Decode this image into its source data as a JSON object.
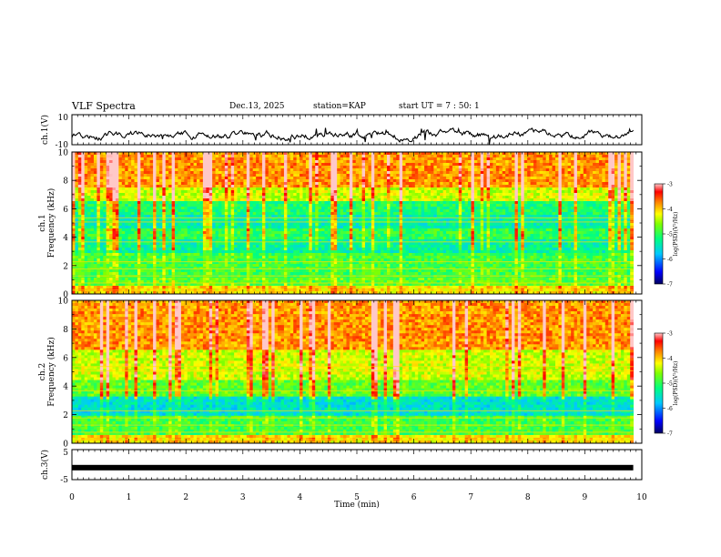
{
  "header": {
    "title": "VLF Spectra",
    "date": "Dec.13, 2025",
    "station": "station=KAP",
    "start": "start  UT =   7 : 50: 1"
  },
  "chart_data": [
    {
      "type": "line",
      "name": "ch1-voltage",
      "ylabel": "ch.1(V)",
      "ylim": [
        -10,
        10
      ],
      "ytick_labels": [
        "10",
        "-10"
      ],
      "xlim": [
        0,
        10
      ],
      "x_extent": [
        0,
        9.85
      ],
      "description_values": "noisy waveform oscillating roughly between -10 and 5 V"
    },
    {
      "type": "heatmap",
      "name": "ch1-spectrogram",
      "ylabel": "ch.1\nFrequency (kHz)",
      "ylabel_lines": [
        "ch.1",
        "Frequency (kHz)"
      ],
      "ylim": [
        0,
        10
      ],
      "ytick_labels": [
        "0",
        "2",
        "4",
        "6",
        "8",
        "10"
      ],
      "yticks": [
        0,
        2,
        4,
        6,
        8,
        10
      ],
      "colorbar": {
        "label": "log(PSD)(V²/Hz)",
        "range": [
          -7,
          -3
        ],
        "ticks": [
          -3,
          -4,
          -5,
          -6,
          -7
        ],
        "tick_labels": [
          "-3",
          "-4",
          "-5",
          "-6",
          "-7"
        ]
      }
    },
    {
      "type": "heatmap",
      "name": "ch2-spectrogram",
      "ylabel": "ch.2\nFrequency (kHz)",
      "ylabel_lines": [
        "ch.2",
        "Frequency (kHz)"
      ],
      "ylim": [
        0,
        10
      ],
      "ytick_labels": [
        "0",
        "2",
        "4",
        "6",
        "8",
        "10"
      ],
      "yticks": [
        0,
        2,
        4,
        6,
        8,
        10
      ],
      "colorbar": {
        "label": "log(PSD)(V²/Hz)",
        "range": [
          -7,
          -3
        ],
        "ticks": [
          -3,
          -4,
          -5,
          -6,
          -7
        ],
        "tick_labels": [
          "-3",
          "-4",
          "-5",
          "-6",
          "-7"
        ]
      }
    },
    {
      "type": "line",
      "name": "ch3-voltage",
      "ylabel": "ch.3(V)",
      "ylim": [
        -5,
        5
      ],
      "ytick_labels": [
        "5",
        "-5"
      ],
      "constant_value": -1
    }
  ],
  "xaxis": {
    "label": "Time (min)",
    "range": [
      0,
      10
    ],
    "ticks": [
      0,
      1,
      2,
      3,
      4,
      5,
      6,
      7,
      8,
      9,
      10
    ],
    "tick_labels": [
      "0",
      "1",
      "2",
      "3",
      "4",
      "5",
      "6",
      "7",
      "8",
      "9",
      "10"
    ]
  },
  "colors": {
    "scale": [
      "#000080",
      "#0000ff",
      "#00c8ff",
      "#00ff80",
      "#80ff00",
      "#ffff00",
      "#ff8000",
      "#ff0000",
      "#ffb0b0"
    ]
  }
}
